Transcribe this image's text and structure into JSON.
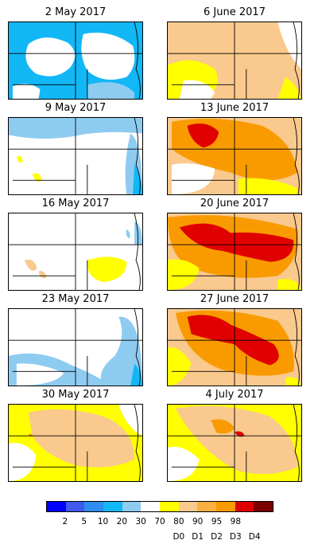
{
  "panels": [
    {
      "title": "2 May 2017",
      "style": "wet_heavy"
    },
    {
      "title": "6 June 2017",
      "style": "d1"
    },
    {
      "title": "9 May 2017",
      "style": "wet_light"
    },
    {
      "title": "13 June 2017",
      "style": "d2_d3small"
    },
    {
      "title": "16 May 2017",
      "style": "d0_spots"
    },
    {
      "title": "20 June 2017",
      "style": "d3_band"
    },
    {
      "title": "23 May 2017",
      "style": "wet_south"
    },
    {
      "title": "27 June 2017",
      "style": "d3_center"
    },
    {
      "title": "30 May 2017",
      "style": "d0_d1"
    },
    {
      "title": "4 July 2017",
      "style": "d1_d2"
    }
  ],
  "colorbar": {
    "colors": [
      "#0000ff",
      "#3f5bef",
      "#2f8cf0",
      "#12b7f5",
      "#8ecbf0",
      "#ffffff",
      "#ffff00",
      "#f9c98d",
      "#fbb040",
      "#f99b00",
      "#e00000",
      "#7b0000"
    ],
    "ticks": [
      "2",
      "5",
      "10",
      "20",
      "30",
      "70",
      "80",
      "90",
      "95",
      "98"
    ],
    "drought_labels": [
      "D0",
      "D1",
      "D2",
      "D3",
      "D4"
    ]
  },
  "palette": {
    "wet_dark": "#12b7f5",
    "wet_light": "#8ecbf0",
    "d0": "#ffff00",
    "d1": "#f9c98d",
    "d2": "#f99b00",
    "d3": "#e00000",
    "background": "#ffffff"
  }
}
